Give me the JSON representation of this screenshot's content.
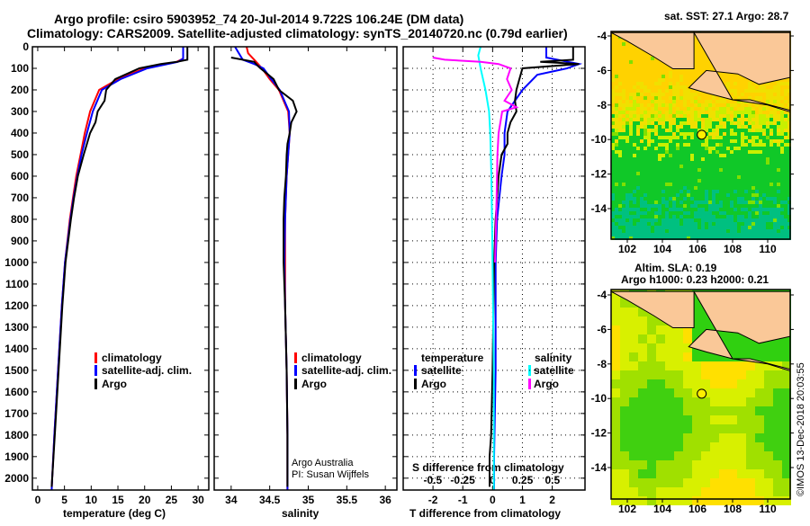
{
  "title_line1": "Argo profile: csiro 5903952_74 20-Jul-2014 9.722S 106.24E (DM data)",
  "title_line2": "Climatology: CARS2009. Satellite-adjusted climatology: synTS_20140720.nc (0.79d earlier)",
  "footer_credit": "©IMOS 13-Dec-2018 20:03:55",
  "colors": {
    "climatology": "#ff0000",
    "satellite": "#0000ff",
    "argo": "#000000",
    "sal_satellite": "#00ffff",
    "sal_argo": "#ff00ff"
  },
  "chart_data": [
    {
      "type": "line",
      "xlabel": "temperature (deg C)",
      "ylabel": "depth",
      "xlim": [
        -1,
        32
      ],
      "ylim": [
        2055,
        0
      ],
      "xticks": [
        "0",
        "5",
        "10",
        "15",
        "20",
        "25",
        "30"
      ],
      "xtick_values": [
        0,
        5,
        10,
        15,
        20,
        25,
        30
      ],
      "yticks": [
        "0",
        "100",
        "200",
        "300",
        "400",
        "500",
        "600",
        "700",
        "800",
        "900",
        "1000",
        "1100",
        "1200",
        "1300",
        "1400",
        "1500",
        "1600",
        "1700",
        "1800",
        "1900",
        "2000"
      ],
      "legend": [
        "climatology",
        "satellite-adj. clim.",
        "Argo"
      ],
      "series": [
        {
          "name": "climatology",
          "color": "#ff0000",
          "depth": [
            55,
            70,
            100,
            150,
            200,
            300,
            400,
            500,
            600,
            700,
            800,
            1000,
            1200,
            1500,
            1800,
            2000,
            2055
          ],
          "values": [
            27.2,
            26,
            20,
            15,
            11.5,
            9.8,
            8.8,
            8.0,
            7.2,
            6.6,
            6.0,
            5.1,
            4.5,
            3.8,
            3.1,
            2.7,
            2.6
          ]
        },
        {
          "name": "satellite-adj. clim.",
          "color": "#0000ff",
          "depth": [
            0,
            55,
            70,
            100,
            150,
            200,
            300,
            400,
            500,
            600,
            700,
            800,
            1000,
            1200,
            1500,
            1800,
            2000,
            2055
          ],
          "values": [
            27.2,
            27.2,
            26.2,
            20.5,
            15.5,
            12,
            10.3,
            9.2,
            8.2,
            7.4,
            6.7,
            6.1,
            5.1,
            4.5,
            3.8,
            3.1,
            2.7,
            2.6
          ]
        },
        {
          "name": "Argo",
          "color": "#000000",
          "depth": [
            0,
            60,
            70,
            80,
            100,
            150,
            200,
            250,
            300,
            350,
            400,
            450,
            500,
            600,
            700,
            800,
            1000,
            1200,
            1500,
            1800,
            2000,
            2040
          ],
          "values": [
            28,
            28,
            26,
            23,
            19,
            14.5,
            12.8,
            12.5,
            11.2,
            10.8,
            9.8,
            9.2,
            8.6,
            7.5,
            6.8,
            6.2,
            5.2,
            4.6,
            3.9,
            3.2,
            2.7,
            2.6
          ]
        }
      ]
    },
    {
      "type": "line",
      "xlabel": "salinity",
      "xlim": [
        33.78,
        36.15
      ],
      "ylim": [
        2055,
        0
      ],
      "xticks": [
        "34",
        "34.5",
        "35",
        "35.5",
        "36"
      ],
      "xtick_values": [
        34,
        34.5,
        35,
        35.5,
        36
      ],
      "legend": [
        "climatology",
        "satellite-adj. clim.",
        "Argo"
      ],
      "annotations": [
        "Argo Australia",
        "PI: Susan Wijffels"
      ],
      "series": [
        {
          "name": "climatology",
          "color": "#ff0000",
          "depth": [
            0,
            30,
            60,
            80,
            100,
            150,
            200,
            300,
            400,
            500,
            600,
            800,
            1000,
            1200,
            1500,
            1800,
            2000,
            2055
          ],
          "values": [
            34.2,
            34.22,
            34.3,
            34.35,
            34.4,
            34.5,
            34.62,
            34.74,
            34.76,
            34.74,
            34.72,
            34.7,
            34.7,
            34.7,
            34.72,
            34.73,
            34.73,
            34.73
          ]
        },
        {
          "name": "satellite-adj. clim.",
          "color": "#0000ff",
          "depth": [
            0,
            30,
            60,
            80,
            100,
            150,
            200,
            300,
            400,
            500,
            600,
            800,
            1000,
            1200,
            1500,
            1800,
            2000,
            2055
          ],
          "values": [
            34.05,
            34.1,
            34.15,
            34.3,
            34.42,
            34.52,
            34.63,
            34.75,
            34.76,
            34.74,
            34.72,
            34.7,
            34.69,
            34.7,
            34.72,
            34.73,
            34.73,
            34.73
          ]
        },
        {
          "name": "Argo",
          "color": "#000000",
          "depth": [
            50,
            70,
            90,
            100,
            120,
            150,
            200,
            250,
            300,
            350,
            400,
            450,
            500,
            600,
            700,
            800,
            1000,
            1200,
            1500,
            1800,
            2000,
            2040
          ],
          "values": [
            34.0,
            34.3,
            34.35,
            34.38,
            34.45,
            34.55,
            34.62,
            34.8,
            34.85,
            34.78,
            34.76,
            34.73,
            34.72,
            34.71,
            34.69,
            34.68,
            34.68,
            34.7,
            34.72,
            34.73,
            34.73,
            34.73
          ]
        }
      ]
    },
    {
      "type": "line",
      "xlabel": "T difference from climatology",
      "x2label": "S difference from climatology",
      "xlim": [
        -3,
        3.1
      ],
      "ylim": [
        2055,
        0
      ],
      "xticks": [
        "-2",
        "-1",
        "0",
        "1",
        "2"
      ],
      "xtick_values": [
        -2,
        -1,
        0,
        1,
        2
      ],
      "x2ticks": [
        "-0.5",
        "-0.25",
        "0",
        "0.25",
        "0.5"
      ],
      "x2tick_values": [
        -0.5,
        -0.25,
        0,
        0.25,
        0.5
      ],
      "legend_temperature": {
        "title": "temperature",
        "items": [
          "satellite",
          "Argo"
        ]
      },
      "legend_salinity": {
        "title": "salinity",
        "items": [
          "satellite",
          "Argo"
        ]
      },
      "series": [
        {
          "name": "T satellite",
          "axis": "T",
          "color": "#0000ff",
          "depth": [
            0,
            50,
            80,
            100,
            130,
            200,
            300,
            400,
            500,
            600,
            800,
            1000,
            1500,
            1900,
            2055
          ],
          "values": [
            1.8,
            1.8,
            2.9,
            2.5,
            1.5,
            1.0,
            0.5,
            0.4,
            0.4,
            0.3,
            0.15,
            0.1,
            0.1,
            0.05,
            0.05
          ]
        },
        {
          "name": "T Argo",
          "axis": "T",
          "color": "#000000",
          "depth": [
            0,
            60,
            70,
            80,
            100,
            150,
            200,
            250,
            300,
            350,
            400,
            450,
            500,
            600,
            800,
            1000,
            1500,
            1800,
            1900,
            2040
          ],
          "values": [
            2.7,
            2.7,
            1.6,
            2.9,
            1.0,
            0.9,
            0.8,
            0.75,
            0.8,
            0.6,
            0.5,
            0.5,
            0.3,
            0.2,
            0.1,
            0.05,
            0.0,
            -0.05,
            -0.1,
            -0.1
          ]
        },
        {
          "name": "S satellite",
          "axis": "S",
          "color": "#00ffff",
          "depth": [
            0,
            40,
            100,
            200,
            300,
            400,
            600,
            1000,
            1500,
            2055
          ],
          "values": [
            -0.1,
            -0.12,
            -0.1,
            -0.06,
            -0.03,
            -0.02,
            -0.01,
            0,
            0.01,
            0.01
          ]
        },
        {
          "name": "S Argo",
          "axis": "S",
          "color": "#ff00ff",
          "depth": [
            50,
            60,
            70,
            80,
            100,
            150,
            200,
            250,
            280,
            300,
            400,
            500,
            800,
            1000
          ],
          "values": [
            -0.5,
            -0.4,
            -0.1,
            0.05,
            0.15,
            0.12,
            0.16,
            0.1,
            0.2,
            0.08,
            0.05,
            0.04,
            0.03,
            0.02
          ]
        }
      ]
    }
  ],
  "maps": [
    {
      "title": "sat. SST: 27.1 Argo: 28.7",
      "lon_ticks": [
        "102",
        "104",
        "106",
        "108",
        "110"
      ],
      "lat_ticks": [
        "-4",
        "-6",
        "-8",
        "-10",
        "-12",
        "-14"
      ],
      "argo_position": {
        "lon": 106.24,
        "lat": -9.722
      }
    },
    {
      "title_line1": "Altim. SLA: 0.19",
      "title_line2": "Argo h1000: 0.23 h2000: 0.21",
      "lon_ticks": [
        "102",
        "104",
        "106",
        "108",
        "110"
      ],
      "lat_ticks": [
        "-4",
        "-6",
        "-8",
        "-10",
        "-12",
        "-14"
      ],
      "argo_position": {
        "lon": 106.24,
        "lat": -9.722
      }
    }
  ]
}
